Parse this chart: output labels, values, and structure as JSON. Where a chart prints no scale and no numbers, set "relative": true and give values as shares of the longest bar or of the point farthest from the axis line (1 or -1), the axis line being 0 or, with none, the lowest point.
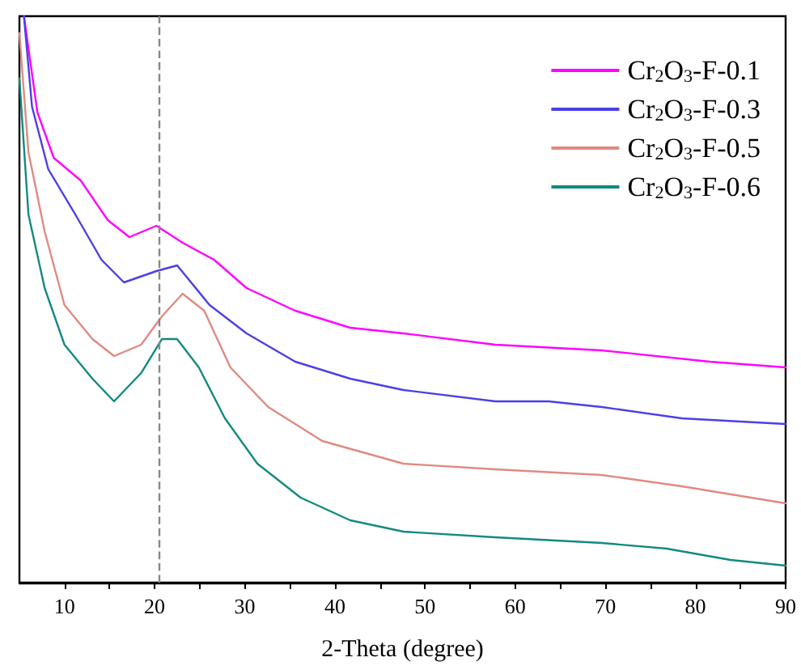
{
  "chart_data": {
    "type": "line",
    "relative": true,
    "xlabel": "2-Theta (degree)",
    "xlim": [
      5,
      90
    ],
    "xticks": [
      10,
      {
        "value": 15,
        "label": null
      },
      20,
      {
        "value": 25,
        "label": null
      },
      30,
      {
        "value": 35,
        "label": null
      },
      40,
      {
        "value": 45,
        "label": null
      },
      50,
      {
        "value": 55,
        "label": null
      },
      60,
      {
        "value": 65,
        "label": null
      },
      70,
      {
        "value": 75,
        "label": null
      },
      80,
      {
        "value": 85,
        "label": null
      },
      90
    ],
    "legend": "top right",
    "marker": "none",
    "line_style": "solid",
    "grid": false,
    "ref_lines": [
      {
        "axis": "x",
        "value": 20.5,
        "color": "#888888",
        "line_style": "dashed"
      }
    ],
    "series": [
      {
        "name": "Cr$_{2}$O$_{3}$-F-0.1",
        "color": "#ff00ff",
        "x": [
          5.5,
          7,
          8.8,
          11.8,
          14.8,
          17.2,
          20.2,
          23.1,
          26.6,
          30.2,
          35.6,
          41.7,
          47.6,
          57.8,
          69.6,
          81.6,
          90
        ],
        "values": [
          1.0,
          0.83,
          0.75,
          0.71,
          0.64,
          0.61,
          0.63,
          0.6,
          0.57,
          0.52,
          0.48,
          0.45,
          0.44,
          0.42,
          0.41,
          0.39,
          0.38
        ]
      },
      {
        "name": "Cr$_{2}$O$_{3}$-F-0.3",
        "color": "#4b3fe8",
        "x": [
          5.5,
          6.4,
          8.2,
          11.2,
          14.1,
          16.6,
          20.2,
          22.5,
          26.1,
          30.2,
          35.6,
          41.7,
          47.6,
          57.8,
          63.7,
          69.6,
          78.5,
          90
        ],
        "values": [
          1.0,
          0.84,
          0.73,
          0.65,
          0.57,
          0.53,
          0.55,
          0.56,
          0.49,
          0.44,
          0.39,
          0.36,
          0.34,
          0.32,
          0.32,
          0.31,
          0.29,
          0.28
        ]
      },
      {
        "name": "Cr$_{2}$O$_{3}$-F-0.5",
        "color": "#e08a80",
        "x": [
          5,
          6,
          7.8,
          10,
          13.1,
          15.5,
          18.5,
          20.8,
          23.1,
          25.5,
          28.4,
          32.6,
          38.6,
          47.6,
          57.8,
          69.6,
          78.5,
          90
        ],
        "values": [
          0.97,
          0.76,
          0.62,
          0.49,
          0.43,
          0.4,
          0.42,
          0.47,
          0.51,
          0.48,
          0.38,
          0.31,
          0.25,
          0.21,
          0.2,
          0.19,
          0.17,
          0.14
        ]
      },
      {
        "name": "Cr$_{2}$O$_{3}$-F-0.6",
        "color": "#138a80",
        "x": [
          5,
          6,
          7.8,
          10,
          13.1,
          15.5,
          18.5,
          20.8,
          22.5,
          24.9,
          27.8,
          31.4,
          36.2,
          41.7,
          47.6,
          57.8,
          69.6,
          76.8,
          83.9,
          90
        ],
        "values": [
          0.89,
          0.65,
          0.52,
          0.42,
          0.36,
          0.32,
          0.37,
          0.43,
          0.43,
          0.38,
          0.29,
          0.21,
          0.15,
          0.11,
          0.09,
          0.08,
          0.07,
          0.06,
          0.04,
          0.03
        ]
      }
    ]
  }
}
